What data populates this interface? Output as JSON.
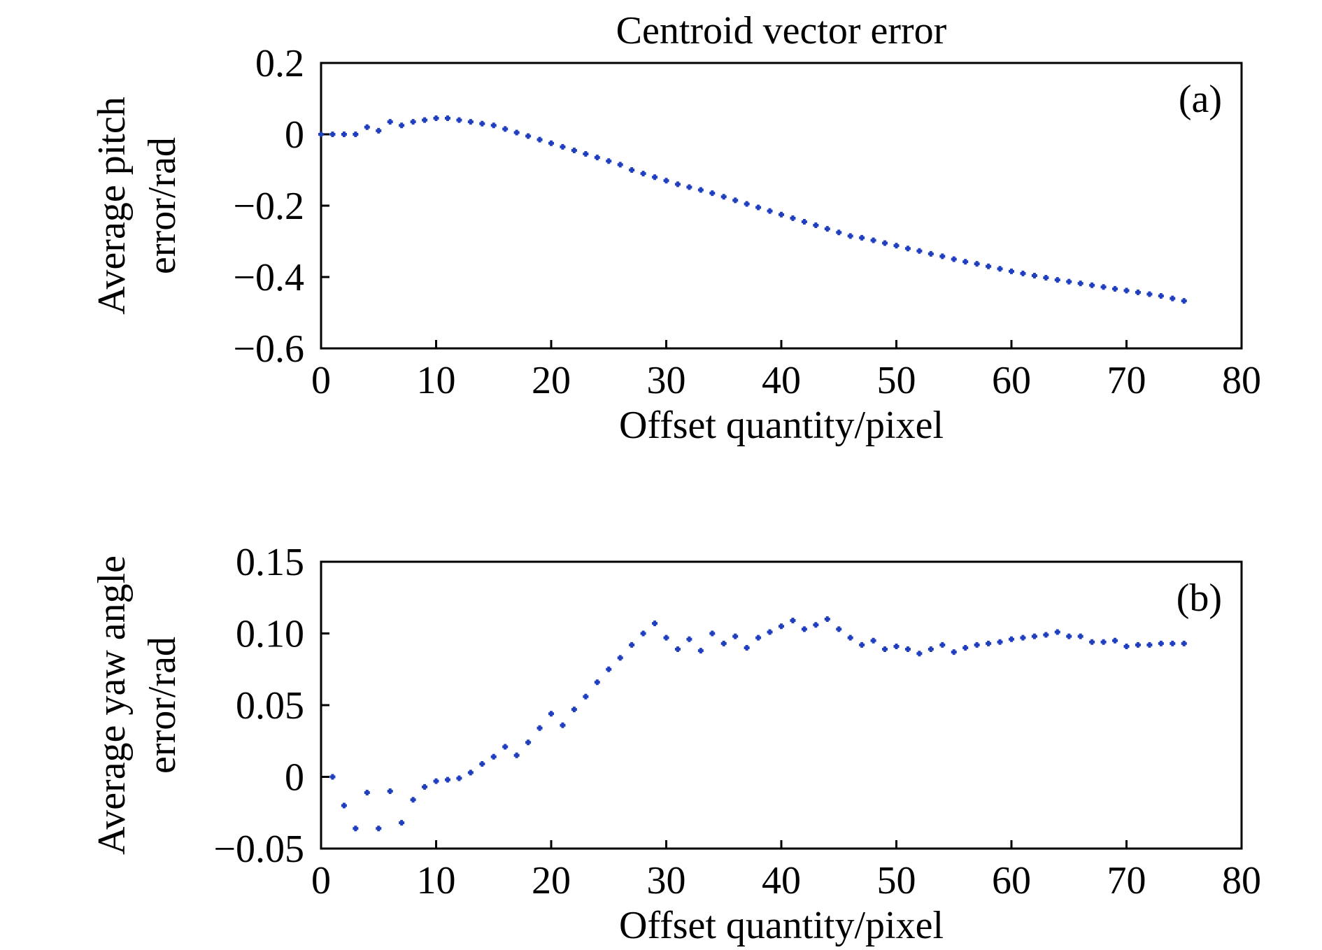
{
  "chart_data": [
    {
      "type": "scatter",
      "title": "Centroid vector error",
      "panel_label": "(a)",
      "xlabel": "Offset quantity/pixel",
      "ylabel_lines": [
        "Average pitch",
        "error/rad"
      ],
      "xlim": [
        0,
        80
      ],
      "ylim": [
        -0.6,
        0.2
      ],
      "xticks": [
        0,
        10,
        20,
        30,
        40,
        50,
        60,
        70,
        80
      ],
      "xtick_labels": [
        "0",
        "10",
        "20",
        "30",
        "40",
        "50",
        "60",
        "70",
        "80"
      ],
      "yticks": [
        0.2,
        0,
        -0.2,
        -0.4,
        -0.6
      ],
      "ytick_labels": [
        "0.2",
        "0",
        "−0.2",
        "−0.4",
        "−0.6"
      ],
      "grid": false,
      "marker_color": "#1f3fbf",
      "series": [
        {
          "x": [
            0,
            1,
            2,
            3,
            4,
            5,
            6,
            7,
            8,
            9,
            10,
            11,
            12,
            13,
            14,
            15,
            16,
            17,
            18,
            19,
            20,
            21,
            22,
            23,
            24,
            25,
            26,
            27,
            28,
            29,
            30,
            31,
            32,
            33,
            34,
            35,
            36,
            37,
            38,
            39,
            40,
            41,
            42,
            43,
            44,
            45,
            46,
            47,
            48,
            49,
            50,
            51,
            52,
            53,
            54,
            55,
            56,
            57,
            58,
            59,
            60,
            61,
            62,
            63,
            64,
            65,
            66,
            67,
            68,
            69,
            70,
            71,
            72,
            73,
            74,
            75
          ],
          "y": [
            0.0,
            0.0,
            0.0,
            0.0,
            0.02,
            0.01,
            0.035,
            0.025,
            0.035,
            0.04,
            0.045,
            0.045,
            0.04,
            0.035,
            0.03,
            0.025,
            0.015,
            0.005,
            -0.005,
            -0.015,
            -0.025,
            -0.035,
            -0.045,
            -0.055,
            -0.065,
            -0.075,
            -0.085,
            -0.1,
            -0.11,
            -0.12,
            -0.13,
            -0.14,
            -0.148,
            -0.156,
            -0.165,
            -0.175,
            -0.185,
            -0.195,
            -0.205,
            -0.215,
            -0.225,
            -0.235,
            -0.245,
            -0.255,
            -0.265,
            -0.275,
            -0.285,
            -0.29,
            -0.297,
            -0.305,
            -0.312,
            -0.32,
            -0.327,
            -0.335,
            -0.342,
            -0.35,
            -0.357,
            -0.363,
            -0.37,
            -0.377,
            -0.384,
            -0.39,
            -0.396,
            -0.402,
            -0.408,
            -0.413,
            -0.418,
            -0.423,
            -0.428,
            -0.433,
            -0.438,
            -0.443,
            -0.448,
            -0.453,
            -0.46,
            -0.467
          ]
        }
      ]
    },
    {
      "type": "scatter",
      "panel_label": "(b)",
      "xlabel": "Offset quantity/pixel",
      "ylabel_lines": [
        "Average yaw angle",
        "error/rad"
      ],
      "xlim": [
        0,
        80
      ],
      "ylim": [
        -0.05,
        0.15
      ],
      "xticks": [
        0,
        10,
        20,
        30,
        40,
        50,
        60,
        70,
        80
      ],
      "xtick_labels": [
        "0",
        "10",
        "20",
        "30",
        "40",
        "50",
        "60",
        "70",
        "80"
      ],
      "yticks": [
        0.15,
        0.1,
        0.05,
        0,
        -0.05
      ],
      "ytick_labels": [
        "0.15",
        "0.10",
        "0.05",
        "0",
        "−0.05"
      ],
      "grid": false,
      "marker_color": "#1f3fbf",
      "series": [
        {
          "x": [
            1,
            2,
            3,
            4,
            5,
            6,
            7,
            8,
            9,
            10,
            11,
            12,
            13,
            14,
            15,
            16,
            17,
            18,
            19,
            20,
            21,
            22,
            23,
            24,
            25,
            26,
            27,
            28,
            29,
            30,
            31,
            32,
            33,
            34,
            35,
            36,
            37,
            38,
            39,
            40,
            41,
            42,
            43,
            44,
            45,
            46,
            47,
            48,
            49,
            50,
            51,
            52,
            53,
            54,
            55,
            56,
            57,
            58,
            59,
            60,
            61,
            62,
            63,
            64,
            65,
            66,
            67,
            68,
            69,
            70,
            71,
            72,
            73,
            74,
            75
          ],
          "y": [
            0.0,
            -0.02,
            -0.036,
            -0.011,
            -0.036,
            -0.01,
            -0.032,
            -0.016,
            -0.007,
            -0.003,
            -0.002,
            -0.001,
            0.003,
            0.009,
            0.014,
            0.021,
            0.015,
            0.024,
            0.034,
            0.044,
            0.036,
            0.047,
            0.056,
            0.066,
            0.075,
            0.083,
            0.092,
            0.1,
            0.107,
            0.097,
            0.089,
            0.096,
            0.088,
            0.1,
            0.093,
            0.098,
            0.09,
            0.097,
            0.101,
            0.105,
            0.109,
            0.103,
            0.106,
            0.11,
            0.103,
            0.097,
            0.092,
            0.095,
            0.089,
            0.091,
            0.089,
            0.086,
            0.089,
            0.092,
            0.087,
            0.09,
            0.092,
            0.093,
            0.094,
            0.096,
            0.097,
            0.098,
            0.099,
            0.101,
            0.098,
            0.098,
            0.094,
            0.094,
            0.095,
            0.091,
            0.092,
            0.092,
            0.093,
            0.093,
            0.093
          ]
        }
      ]
    }
  ]
}
